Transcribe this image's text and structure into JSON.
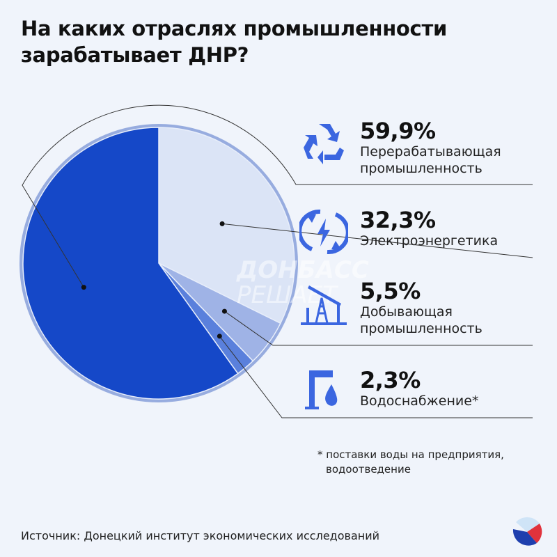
{
  "title": "На каких отраслях промышленности зарабатывает ДНР?",
  "chart_data": {
    "type": "pie",
    "start": "top",
    "direction": "clockwise",
    "slices": [
      {
        "label": "Электроэнергетика",
        "value": 32.3,
        "display": "32,3%",
        "color": "#dbe4f6",
        "icon": "lightning-cycle-icon"
      },
      {
        "label": "Добывающая промышленность",
        "value": 5.5,
        "display": "5,5%",
        "color": "#9fb3e6",
        "icon": "oil-pump-icon"
      },
      {
        "label": "Водоснабжение*",
        "value": 2.3,
        "display": "2,3%",
        "color": "#5a80dc",
        "icon": "water-tap-icon"
      },
      {
        "label": "Перерабатывающая промышленность",
        "value": 59.9,
        "display": "59,9%",
        "color": "#1548c8",
        "icon": "recycle-icon"
      }
    ]
  },
  "legend": [
    {
      "pct": "59,9%",
      "lines": [
        "Перерабатывающая",
        "промышленность"
      ]
    },
    {
      "pct": "32,3%",
      "lines": [
        "Электроэнергетика"
      ]
    },
    {
      "pct": "5,5%",
      "lines": [
        "Добывающая",
        "промышленность"
      ]
    },
    {
      "pct": "2,3%",
      "lines": [
        "Водоснабжение*"
      ]
    }
  ],
  "watermark": [
    "ДОНБАСС",
    "РЕШАЕТ"
  ],
  "note": [
    "* поставки воды на предприятия,",
    "водоотведение"
  ],
  "source": "Источник: Донецкий институт экономических исследований",
  "colors": {
    "accent": "#3b66e0",
    "background": "#f0f4fb",
    "ring": "#97acdf"
  }
}
